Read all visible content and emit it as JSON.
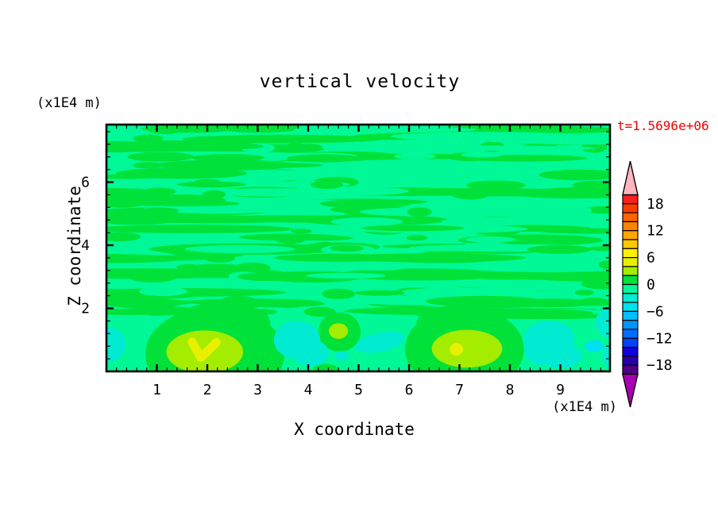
{
  "title": "vertical velocity",
  "timestamp": "t=1.5696e+06",
  "timestamp_color": "#ee0000",
  "x_axis": {
    "title": "X coordinate",
    "unit": "(x1E4 m)",
    "tick_labels": [
      "1",
      "2",
      "3",
      "4",
      "5",
      "6",
      "7",
      "8",
      "9"
    ],
    "tick_values": [
      1,
      2,
      3,
      4,
      5,
      6,
      7,
      8,
      9
    ],
    "minor_step": 0.2,
    "range": [
      0,
      9.98
    ]
  },
  "z_axis": {
    "title": "Z coordinate",
    "unit": "(x1E4 m)",
    "tick_labels": [
      "2",
      "4",
      "6"
    ],
    "tick_values": [
      2,
      4,
      6
    ],
    "minor_step": 0.4,
    "range": [
      0,
      7.82
    ]
  },
  "colorbar": {
    "value_top": 20,
    "value_step": -2,
    "labels": [
      "18",
      "12",
      "6",
      "0",
      "-6",
      "-12",
      "-18"
    ],
    "label_boundaries": [
      1,
      4,
      7,
      10,
      13,
      16,
      19
    ],
    "colors_top_to_bottom": [
      "#FF1E1E",
      "#FF3C00",
      "#FF6400",
      "#FF8200",
      "#FFA500",
      "#FFC800",
      "#FFF000",
      "#E8F000",
      "#A4EC00",
      "#00E139",
      "#00F896",
      "#00EBD2",
      "#00E1F0",
      "#00BEFF",
      "#0096FF",
      "#006EFF",
      "#0041FF",
      "#0F00DC",
      "#2800AA",
      "#500082"
    ],
    "top_arrow_color": "#FFB4BE",
    "bottom_arrow_color": "#AA00B4"
  },
  "chart_data": {
    "type": "heatmap",
    "title": "vertical velocity",
    "xlabel": "X coordinate (x1E4 m)",
    "ylabel": "Z coordinate (x1E4 m)",
    "xlim": [
      0,
      10
    ],
    "ylim": [
      0,
      7.82
    ],
    "levels": {
      "min": -20,
      "max": 20,
      "step": 2,
      "labeled": [
        18,
        12,
        6,
        0,
        -6,
        -12,
        -18
      ]
    },
    "bands": {
      "band_pos3": "#E8F000",
      "band_pos2": "#A4EC00",
      "band_pos1": "#00E139",
      "background": "#00F896",
      "band_neg2": "#00EBD2",
      "band_neg3": "#00E1F0"
    },
    "band_values": {
      "band_pos3": "4..6",
      "band_pos2": "2..4",
      "band_pos1": "0..2",
      "background": "-2..0",
      "band_neg2": "-4..-2",
      "band_neg3": "-6..-4"
    },
    "streak_texture": {
      "description": "horizontal interleaved streaks of band 0..2 green over -2..0 background, z from ~1.8 to top",
      "seed": 13,
      "zone": [
        3,
        243
      ],
      "row": 11.5,
      "green1": 118,
      "carve": 58,
      "green2": 44
    },
    "features": [
      {
        "shape": "ellipse",
        "band": "band_pos1",
        "x": 2.15,
        "z": 0.55,
        "rx": 1.38,
        "rz": 1.5
      },
      {
        "shape": "ellipse",
        "band": "band_pos1",
        "x": 2.3,
        "z": 1.55,
        "rx": 0.95,
        "rz": 0.65
      },
      {
        "shape": "ellipse",
        "band": "band_pos1",
        "x": 4.62,
        "z": 1.25,
        "rx": 0.42,
        "rz": 0.62
      },
      {
        "shape": "ellipse",
        "band": "band_pos1",
        "x": 7.1,
        "z": 0.7,
        "rx": 1.18,
        "rz": 1.35
      },
      {
        "shape": "ellipse",
        "band": "band_pos1",
        "x": 7.0,
        "z": 1.55,
        "rx": 0.85,
        "rz": 0.55
      },
      {
        "shape": "ellipse",
        "band": "band_pos1",
        "x": 4.35,
        "z": 0.05,
        "rx": 0.25,
        "rz": 0.18
      },
      {
        "shape": "ellipse",
        "band": "band_neg2",
        "x": 0.02,
        "z": 0.85,
        "rx": 0.36,
        "rz": 0.55
      },
      {
        "shape": "ellipse",
        "band": "band_neg2",
        "x": 3.78,
        "z": 1.0,
        "rx": 0.46,
        "rz": 0.6
      },
      {
        "shape": "ellipse",
        "band": "band_neg2",
        "x": 4.05,
        "z": 0.58,
        "rx": 0.36,
        "rz": 0.42
      },
      {
        "shape": "ellipse",
        "band": "band_neg2",
        "x": 4.66,
        "z": 0.5,
        "rx": 0.14,
        "rz": 0.15
      },
      {
        "shape": "ellipse",
        "band": "band_neg2",
        "x": 5.42,
        "z": 0.92,
        "rx": 0.5,
        "rz": 0.3,
        "rot": -12
      },
      {
        "shape": "ellipse",
        "band": "band_neg2",
        "x": 8.78,
        "z": 1.05,
        "rx": 0.5,
        "rz": 0.55
      },
      {
        "shape": "ellipse",
        "band": "band_neg2",
        "x": 9.0,
        "z": 0.5,
        "rx": 0.44,
        "rz": 0.4
      },
      {
        "shape": "ellipse",
        "band": "band_neg2",
        "x": 8.62,
        "z": 0.8,
        "rx": 0.34,
        "rz": 0.62
      },
      {
        "shape": "ellipse",
        "band": "band_neg2",
        "x": 10.0,
        "z": 1.55,
        "rx": 0.3,
        "rz": 0.5
      },
      {
        "shape": "ellipse",
        "band": "band_neg2",
        "x": 10.05,
        "z": 0.5,
        "rx": 0.22,
        "rz": 0.4
      },
      {
        "shape": "ellipse",
        "band": "band_neg3",
        "x": 9.67,
        "z": 0.8,
        "rx": 0.19,
        "rz": 0.19
      },
      {
        "shape": "ellipse",
        "band": "band_pos2",
        "x": 1.95,
        "z": 0.62,
        "rx": 0.76,
        "rz": 0.68
      },
      {
        "shape": "ellipse",
        "band": "band_pos2",
        "x": 4.6,
        "z": 1.28,
        "rx": 0.19,
        "rz": 0.25
      },
      {
        "shape": "ellipse",
        "band": "band_pos2",
        "x": 7.15,
        "z": 0.72,
        "rx": 0.7,
        "rz": 0.6
      },
      {
        "shape": "polyline",
        "band": "band_pos3",
        "w": 11,
        "pts": [
          [
            1.7,
            0.93
          ],
          [
            1.87,
            0.44
          ],
          [
            2.18,
            0.92
          ]
        ]
      },
      {
        "shape": "ellipse",
        "band": "band_pos3",
        "x": 6.94,
        "z": 0.7,
        "rx": 0.13,
        "rz": 0.2
      }
    ]
  }
}
